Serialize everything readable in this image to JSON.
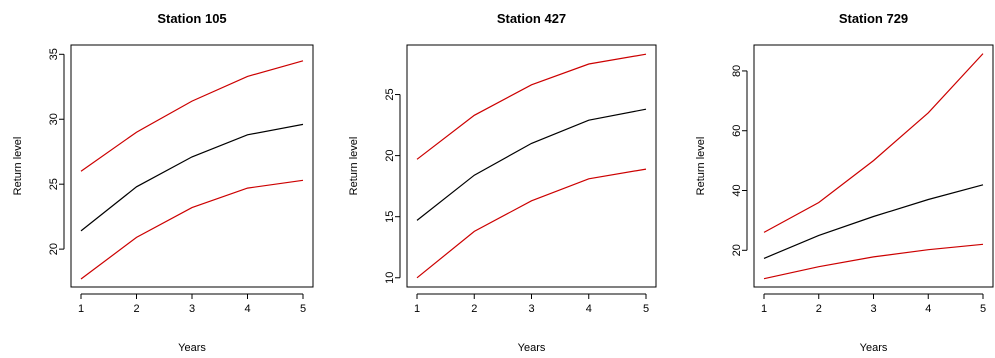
{
  "chart_data": [
    {
      "type": "line",
      "title": "Station 105",
      "xlabel": "Years",
      "ylabel": "Return level",
      "x": [
        1,
        2,
        3,
        4,
        5
      ],
      "xticks": [
        1,
        2,
        3,
        4,
        5
      ],
      "xlim": [
        1,
        5
      ],
      "yticks": [
        20,
        25,
        30,
        35
      ],
      "ylim": [
        17.7,
        35.1
      ],
      "grid": false,
      "series": [
        {
          "role": "upper",
          "color": "#cc0000",
          "values": [
            26.0,
            29.0,
            31.4,
            33.3,
            34.5
          ]
        },
        {
          "role": "estimate",
          "color": "#000000",
          "values": [
            21.4,
            24.8,
            27.1,
            28.8,
            29.6
          ]
        },
        {
          "role": "lower",
          "color": "#cc0000",
          "values": [
            17.7,
            20.9,
            23.2,
            24.7,
            25.3
          ]
        }
      ]
    },
    {
      "type": "line",
      "title": "Station 427",
      "xlabel": "Years",
      "ylabel": "Return level",
      "x": [
        1,
        2,
        3,
        4,
        5
      ],
      "xticks": [
        1,
        2,
        3,
        4,
        5
      ],
      "xlim": [
        1,
        5
      ],
      "yticks": [
        10,
        15,
        20,
        25
      ],
      "ylim": [
        9.9,
        28.4
      ],
      "grid": false,
      "series": [
        {
          "role": "upper",
          "color": "#cc0000",
          "values": [
            19.7,
            23.3,
            25.8,
            27.5,
            28.3
          ]
        },
        {
          "role": "estimate",
          "color": "#000000",
          "values": [
            14.7,
            18.4,
            21.0,
            22.9,
            23.8
          ]
        },
        {
          "role": "lower",
          "color": "#cc0000",
          "values": [
            10.0,
            13.8,
            16.3,
            18.1,
            18.9
          ]
        }
      ]
    },
    {
      "type": "line",
      "title": "Station 729",
      "xlabel": "Years",
      "ylabel": "Return level",
      "x": [
        1,
        2,
        3,
        4,
        5
      ],
      "xticks": [
        1,
        2,
        3,
        4,
        5
      ],
      "xlim": [
        1,
        5
      ],
      "yticks": [
        20,
        40,
        60,
        80
      ],
      "ylim": [
        10.4,
        86.0
      ],
      "grid": false,
      "series": [
        {
          "role": "upper",
          "color": "#cc0000",
          "values": [
            26.0,
            36.0,
            50.0,
            66.0,
            85.8
          ]
        },
        {
          "role": "estimate",
          "color": "#000000",
          "values": [
            17.3,
            25.0,
            31.3,
            37.0,
            41.9
          ]
        },
        {
          "role": "lower",
          "color": "#cc0000",
          "values": [
            10.5,
            14.5,
            17.8,
            20.2,
            22.0
          ]
        }
      ]
    }
  ]
}
